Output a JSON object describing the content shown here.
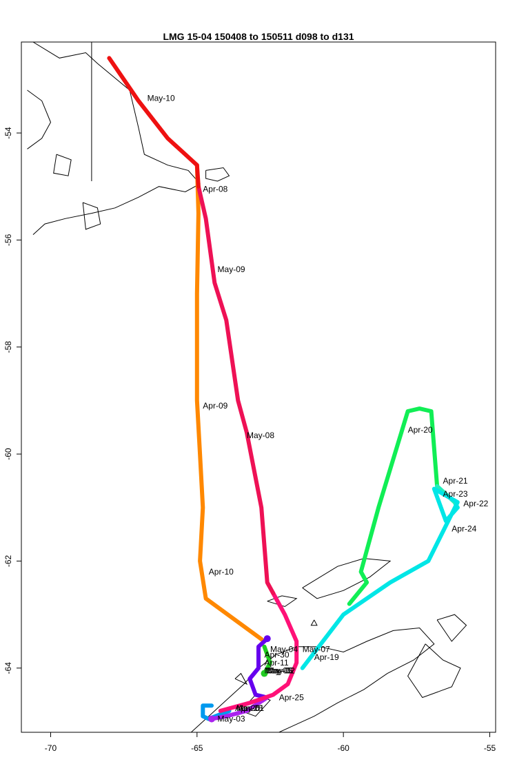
{
  "title": "LMG   15-04     150408 to 150511    d098 to d131",
  "chart_data": {
    "type": "map-track",
    "title": "LMG   15-04     150408 to 150511    d098 to d131",
    "xlim": [
      -71,
      -54.8
    ],
    "ylim": [
      -65.2,
      -52.3
    ],
    "x_ticks": [
      -70,
      -65,
      -60,
      -55
    ],
    "y_ticks": [
      -54,
      -56,
      -58,
      -60,
      -62,
      -64
    ],
    "x_tick_labels": [
      "-70",
      "-65",
      "-60",
      "-55"
    ],
    "y_tick_labels": [
      "-54",
      "-56",
      "-58",
      "-60",
      "-62",
      "-64"
    ],
    "segments": [
      {
        "color": "#ff8800",
        "points": [
          [
            -62.7,
            -63.5
          ],
          [
            -64.7,
            -62.7
          ],
          [
            -64.9,
            -62.0
          ],
          [
            -64.8,
            -61.0
          ],
          [
            -64.9,
            -60.0
          ],
          [
            -65.0,
            -59.0
          ],
          [
            -65.0,
            -57.0
          ],
          [
            -64.95,
            -55.5
          ],
          [
            -65.0,
            -54.6
          ]
        ]
      },
      {
        "color": "#22cc22",
        "points": [
          [
            -62.7,
            -63.6
          ],
          [
            -62.5,
            -63.9
          ],
          [
            -62.7,
            -64.1
          ]
        ]
      },
      {
        "color": "#11ee55",
        "points": [
          [
            -59.8,
            -62.8
          ],
          [
            -59.2,
            -62.4
          ],
          [
            -59.4,
            -62.2
          ],
          [
            -58.8,
            -61.0
          ],
          [
            -57.8,
            -59.2
          ],
          [
            -57.4,
            -59.15
          ],
          [
            -57.0,
            -59.2
          ],
          [
            -56.8,
            -60.6
          ]
        ]
      },
      {
        "color": "#22eebb",
        "points": [
          [
            -56.8,
            -60.6
          ],
          [
            -56.2,
            -60.9
          ],
          [
            -56.1,
            -61.0
          ]
        ]
      },
      {
        "color": "#00e6e6",
        "points": [
          [
            -56.1,
            -61.0
          ],
          [
            -56.5,
            -61.25
          ],
          [
            -56.9,
            -60.65
          ],
          [
            -56.1,
            -60.9
          ],
          [
            -57.1,
            -62.0
          ],
          [
            -58.4,
            -62.4
          ],
          [
            -60.0,
            -63.0
          ],
          [
            -61.4,
            -64.0
          ]
        ]
      },
      {
        "color": "#0099ee",
        "points": [
          [
            -63.9,
            -64.8
          ],
          [
            -64.6,
            -64.95
          ],
          [
            -64.8,
            -64.9
          ],
          [
            -64.8,
            -64.7
          ],
          [
            -64.5,
            -64.7
          ]
        ]
      },
      {
        "color": "#6600ee",
        "points": [
          [
            -62.6,
            -63.45
          ],
          [
            -62.9,
            -63.6
          ],
          [
            -62.9,
            -64.0
          ],
          [
            -63.2,
            -64.2
          ],
          [
            -63.0,
            -64.5
          ],
          [
            -62.6,
            -64.55
          ]
        ]
      },
      {
        "color": "#aa22ee",
        "points": [
          [
            -62.6,
            -64.55
          ],
          [
            -63.3,
            -64.8
          ],
          [
            -64.0,
            -64.9
          ],
          [
            -64.5,
            -64.95
          ]
        ]
      },
      {
        "color": "#ff1177",
        "points": [
          [
            -64.2,
            -64.8
          ],
          [
            -63.2,
            -64.65
          ],
          [
            -62.4,
            -64.5
          ],
          [
            -61.9,
            -64.3
          ],
          [
            -61.6,
            -63.9
          ],
          [
            -61.6,
            -63.5
          ],
          [
            -62.0,
            -63.0
          ],
          [
            -62.4,
            -62.6
          ]
        ]
      },
      {
        "color": "#ee1155",
        "points": [
          [
            -62.4,
            -62.6
          ],
          [
            -62.6,
            -62.4
          ],
          [
            -62.8,
            -61.0
          ],
          [
            -63.3,
            -59.6
          ],
          [
            -63.6,
            -59.0
          ],
          [
            -64.0,
            -57.5
          ],
          [
            -64.4,
            -56.8
          ],
          [
            -64.7,
            -55.6
          ],
          [
            -64.95,
            -55.0
          ]
        ]
      },
      {
        "color": "#ee1111",
        "points": [
          [
            -64.95,
            -55.0
          ],
          [
            -65.0,
            -54.6
          ],
          [
            -66.0,
            -54.1
          ],
          [
            -67.0,
            -53.4
          ],
          [
            -68.0,
            -52.6
          ]
        ]
      }
    ],
    "dots": [
      {
        "color": "#6600ee",
        "lon": -62.6,
        "lat": -63.45
      },
      {
        "color": "#22cc22",
        "lon": -62.7,
        "lat": -64.1
      },
      {
        "color": "#aa22ee",
        "lon": -64.5,
        "lat": -64.95
      }
    ],
    "annotations": [
      {
        "text": "May-10",
        "lon": -66.7,
        "lat": -53.4
      },
      {
        "text": "Apr-08",
        "lon": -64.8,
        "lat": -55.1
      },
      {
        "text": "May-09",
        "lon": -64.3,
        "lat": -56.6
      },
      {
        "text": "Apr-09",
        "lon": -64.8,
        "lat": -59.15
      },
      {
        "text": "May-08",
        "lon": -63.3,
        "lat": -59.7
      },
      {
        "text": "Apr-20",
        "lon": -57.8,
        "lat": -59.6
      },
      {
        "text": "Apr-21",
        "lon": -56.6,
        "lat": -60.55
      },
      {
        "text": "Apr-23",
        "lon": -56.6,
        "lat": -60.8
      },
      {
        "text": "Apr-22",
        "lon": -55.9,
        "lat": -60.98
      },
      {
        "text": "Apr-24",
        "lon": -56.3,
        "lat": -61.45
      },
      {
        "text": "Apr-10",
        "lon": -64.6,
        "lat": -62.25
      },
      {
        "text": "May-07",
        "lon": -61.4,
        "lat": -63.7
      },
      {
        "text": "Apr-19",
        "lon": -61.0,
        "lat": -63.85
      },
      {
        "text": "May-04",
        "lon": -62.5,
        "lat": -63.7
      },
      {
        "text": "Apr-30",
        "lon": -62.7,
        "lat": -63.8
      },
      {
        "text": "Apr-11",
        "lon": -62.7,
        "lat": -63.95
      },
      {
        "text": "May-05",
        "lon": -62.7,
        "lat": -64.1
      },
      {
        "text": "May-06",
        "lon": -62.65,
        "lat": -64.1
      },
      {
        "text": "May-02",
        "lon": -62.6,
        "lat": -64.1
      },
      {
        "text": "Apr-25",
        "lon": -62.2,
        "lat": -64.6
      },
      {
        "text": "Apr-26",
        "lon": -63.7,
        "lat": -64.8
      },
      {
        "text": "May-01",
        "lon": -63.65,
        "lat": -64.8
      },
      {
        "text": "Apr-28",
        "lon": -63.6,
        "lat": -64.8
      },
      {
        "text": "May-03",
        "lon": -64.3,
        "lat": -65.0
      }
    ]
  },
  "coastlines": [
    [
      [
        -70.6,
        -52.3
      ],
      [
        -69.7,
        -52.6
      ],
      [
        -68.8,
        -52.5
      ],
      [
        -68.4,
        -52.7
      ],
      [
        -67.3,
        -53.2
      ],
      [
        -67.0,
        -53.9
      ],
      [
        -66.8,
        -54.4
      ],
      [
        -66.0,
        -54.6
      ],
      [
        -65.3,
        -54.7
      ],
      [
        -64.9,
        -54.95
      ],
      [
        -65.4,
        -55.1
      ],
      [
        -66.3,
        -55.0
      ],
      [
        -67.0,
        -55.2
      ],
      [
        -67.8,
        -55.4
      ],
      [
        -68.6,
        -55.5
      ],
      [
        -69.5,
        -55.6
      ],
      [
        -70.2,
        -55.7
      ],
      [
        -70.6,
        -55.9
      ]
    ],
    [
      [
        -64.7,
        -54.7
      ],
      [
        -64.1,
        -54.65
      ],
      [
        -63.9,
        -54.8
      ],
      [
        -64.3,
        -54.9
      ],
      [
        -64.7,
        -54.85
      ],
      [
        -64.7,
        -54.7
      ]
    ],
    [
      [
        -70.8,
        -53.2
      ],
      [
        -70.3,
        -53.4
      ],
      [
        -70.0,
        -53.8
      ],
      [
        -70.3,
        -54.1
      ],
      [
        -70.8,
        -54.3
      ]
    ],
    [
      [
        -69.8,
        -54.4
      ],
      [
        -69.3,
        -54.5
      ],
      [
        -69.4,
        -54.8
      ],
      [
        -69.9,
        -54.75
      ],
      [
        -69.8,
        -54.4
      ]
    ],
    [
      [
        -68.9,
        -55.3
      ],
      [
        -68.4,
        -55.4
      ],
      [
        -68.3,
        -55.7
      ],
      [
        -68.8,
        -55.8
      ],
      [
        -68.9,
        -55.3
      ]
    ],
    [
      [
        -61.4,
        -62.5
      ],
      [
        -60.2,
        -62.1
      ],
      [
        -59.3,
        -61.95
      ],
      [
        -58.4,
        -62.0
      ],
      [
        -59.1,
        -62.3
      ],
      [
        -60.0,
        -62.55
      ],
      [
        -60.9,
        -62.7
      ],
      [
        -61.4,
        -62.5
      ]
    ],
    [
      [
        -62.6,
        -62.75
      ],
      [
        -62.1,
        -62.65
      ],
      [
        -61.6,
        -62.7
      ],
      [
        -62.0,
        -62.85
      ],
      [
        -62.6,
        -62.75
      ]
    ],
    [
      [
        -61.0,
        -63.1
      ],
      [
        -60.9,
        -63.2
      ],
      [
        -61.1,
        -63.2
      ],
      [
        -61.0,
        -63.1
      ]
    ],
    [
      [
        -65.2,
        -65.2
      ],
      [
        -64.6,
        -64.9
      ],
      [
        -64.0,
        -64.6
      ],
      [
        -63.4,
        -64.3
      ],
      [
        -62.9,
        -64.0
      ],
      [
        -62.3,
        -63.75
      ],
      [
        -61.6,
        -63.6
      ],
      [
        -60.8,
        -63.6
      ],
      [
        -60.0,
        -63.7
      ],
      [
        -59.2,
        -63.5
      ],
      [
        -58.3,
        -63.3
      ],
      [
        -57.4,
        -63.25
      ],
      [
        -56.9,
        -63.55
      ],
      [
        -57.6,
        -63.85
      ],
      [
        -58.5,
        -64.1
      ],
      [
        -59.3,
        -64.4
      ],
      [
        -60.2,
        -64.65
      ],
      [
        -61.0,
        -64.9
      ],
      [
        -61.8,
        -65.1
      ],
      [
        -62.2,
        -65.2
      ]
    ],
    [
      [
        -57.2,
        -63.55
      ],
      [
        -56.6,
        -63.85
      ],
      [
        -56.0,
        -64.0
      ],
      [
        -56.3,
        -64.35
      ],
      [
        -57.3,
        -64.55
      ],
      [
        -57.8,
        -64.15
      ],
      [
        -57.2,
        -63.55
      ]
    ],
    [
      [
        -56.8,
        -63.1
      ],
      [
        -56.2,
        -63.0
      ],
      [
        -55.8,
        -63.2
      ],
      [
        -56.3,
        -63.5
      ],
      [
        -56.8,
        -63.1
      ]
    ],
    [
      [
        -63.5,
        -64.8
      ],
      [
        -63.0,
        -64.5
      ],
      [
        -62.5,
        -64.6
      ],
      [
        -63.0,
        -64.9
      ],
      [
        -63.5,
        -64.8
      ]
    ],
    [
      [
        -63.7,
        -64.2
      ],
      [
        -63.5,
        -64.1
      ],
      [
        -63.3,
        -64.3
      ],
      [
        -63.7,
        -64.2
      ]
    ]
  ],
  "border_line": [
    [
      -68.6,
      -52.3
    ],
    [
      -68.6,
      -54.9
    ]
  ]
}
